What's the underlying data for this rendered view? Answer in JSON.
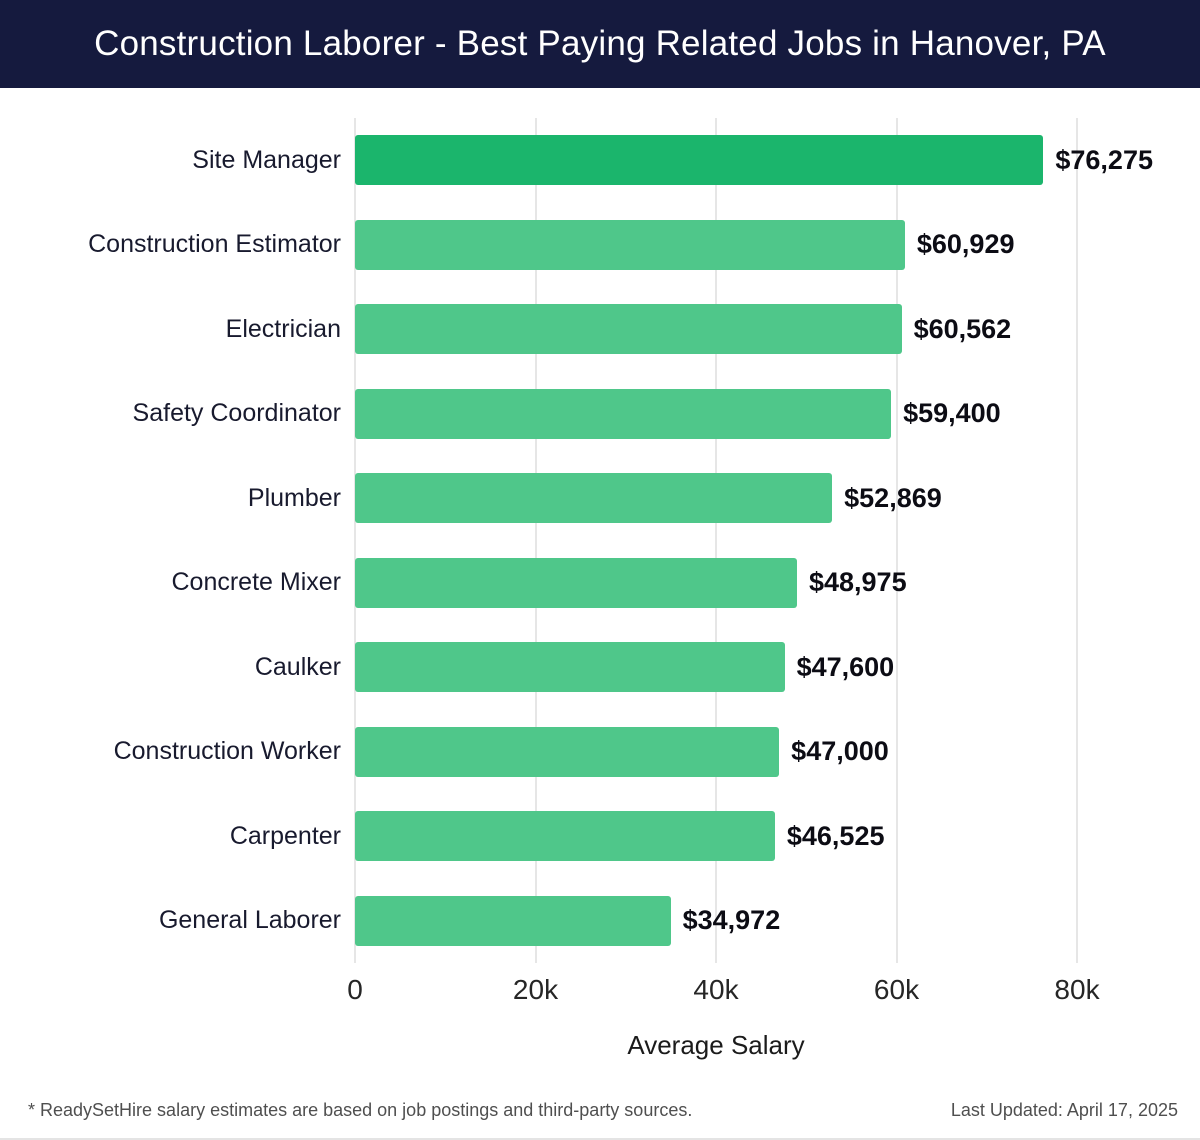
{
  "header": {
    "title": "Construction Laborer - Best Paying Related Jobs in Hanover, PA"
  },
  "colors": {
    "header_bg": "#151a3e",
    "bar_color": "#4fc78a",
    "bar_highlight_color": "#1bb56c",
    "gridline_color": "#e6e6e6"
  },
  "chart_data": {
    "type": "bar",
    "orientation": "horizontal",
    "title": "Construction Laborer - Best Paying Related Jobs in Hanover, PA",
    "categories": [
      "Site Manager",
      "Construction Estimator",
      "Electrician",
      "Safety Coordinator",
      "Plumber",
      "Concrete Mixer",
      "Caulker",
      "Construction Worker",
      "Carpenter",
      "General Laborer"
    ],
    "values": [
      76275,
      60929,
      60562,
      59400,
      52869,
      48975,
      47600,
      47000,
      46525,
      34972
    ],
    "value_labels": [
      "$76,275",
      "$60,929",
      "$60,562",
      "$59,400",
      "$52,869",
      "$48,975",
      "$47,600",
      "$47,000",
      "$46,525",
      "$34,972"
    ],
    "highlight_index": 0,
    "bar_color": "#4fc78a",
    "bar_highlight_color": "#1bb56c",
    "xlabel": "Average Salary",
    "xlim": [
      0,
      80000
    ],
    "grid": true,
    "legend": false,
    "x_ticks": [
      {
        "value": 0,
        "label": "0"
      },
      {
        "value": 20000,
        "label": "20k"
      },
      {
        "value": 40000,
        "label": "40k"
      },
      {
        "value": 60000,
        "label": "60k"
      },
      {
        "value": 80000,
        "label": "80k"
      }
    ]
  },
  "footer": {
    "source_note": "* ReadySetHire salary estimates are based on job postings and third-party sources.",
    "last_updated": "Last Updated: April 17, 2025"
  }
}
